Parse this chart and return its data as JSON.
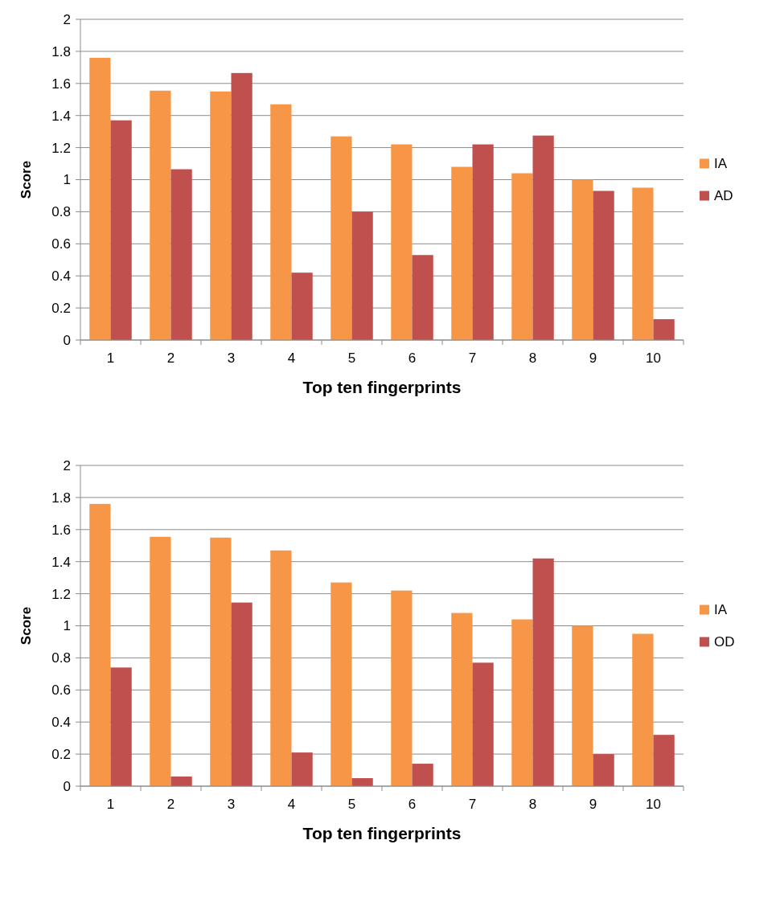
{
  "chart_data": [
    {
      "type": "bar",
      "xlabel": "Top ten fingerprints",
      "ylabel": "Score",
      "categories": [
        "1",
        "2",
        "3",
        "4",
        "5",
        "6",
        "7",
        "8",
        "9",
        "10"
      ],
      "series": [
        {
          "name": "IA",
          "color": "#f79646",
          "values": [
            1.76,
            1.555,
            1.55,
            1.47,
            1.27,
            1.22,
            1.08,
            1.04,
            1.0,
            0.95
          ]
        },
        {
          "name": "AD",
          "color": "#c0504d",
          "values": [
            1.37,
            1.065,
            1.665,
            0.42,
            0.8,
            0.53,
            1.22,
            1.275,
            0.93,
            0.13
          ]
        }
      ],
      "ylim": [
        0,
        2
      ],
      "yticks": [
        0,
        0.2,
        0.4,
        0.6,
        0.8,
        1,
        1.2,
        1.4,
        1.6,
        1.8,
        2
      ],
      "grid": "y",
      "legend": "right"
    },
    {
      "type": "bar",
      "xlabel": "Top ten fingerprints",
      "ylabel": "Score",
      "categories": [
        "1",
        "2",
        "3",
        "4",
        "5",
        "6",
        "7",
        "8",
        "9",
        "10"
      ],
      "series": [
        {
          "name": "IA",
          "color": "#f79646",
          "values": [
            1.76,
            1.555,
            1.55,
            1.47,
            1.27,
            1.22,
            1.08,
            1.04,
            1.0,
            0.95
          ]
        },
        {
          "name": "OD",
          "color": "#c0504d",
          "values": [
            0.74,
            0.06,
            1.145,
            0.21,
            0.05,
            0.14,
            0.77,
            1.42,
            0.2,
            0.32
          ]
        }
      ],
      "ylim": [
        0,
        2
      ],
      "yticks": [
        0,
        0.2,
        0.4,
        0.6,
        0.8,
        1,
        1.2,
        1.4,
        1.6,
        1.8,
        2
      ],
      "grid": "y",
      "legend": "right"
    }
  ]
}
